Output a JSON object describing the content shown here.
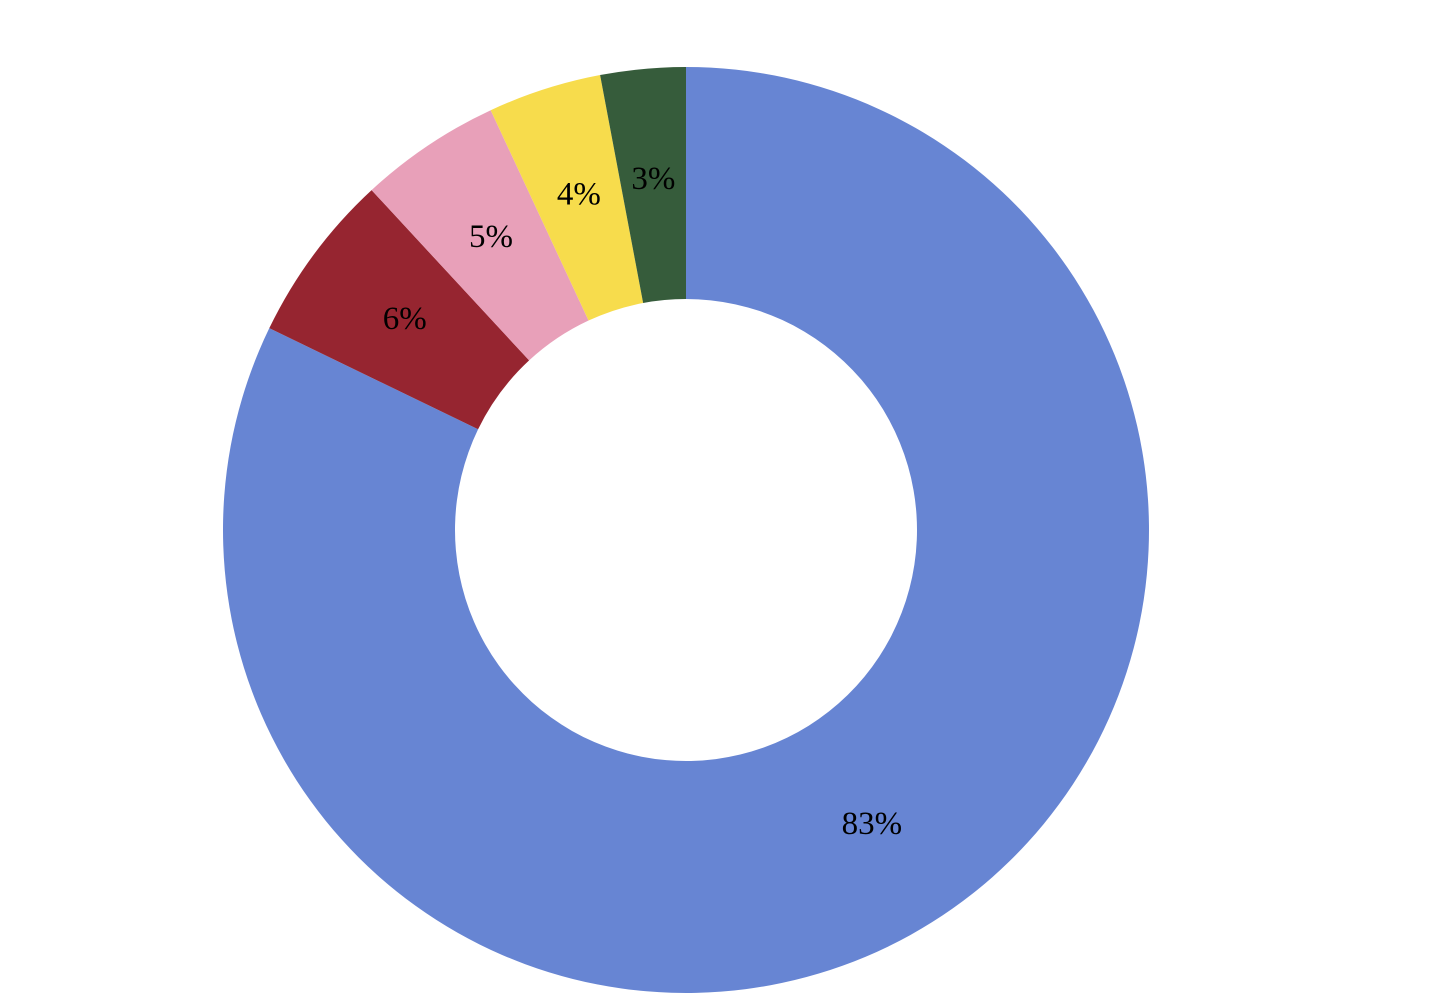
{
  "chart_data": {
    "type": "donut",
    "values": [
      83,
      6,
      5,
      4,
      3
    ],
    "value_labels": [
      "83%",
      "6%",
      "5%",
      "4%",
      "3%"
    ],
    "colors": [
      "#6785d3",
      "#962530",
      "#e8a0b9",
      "#f7dc4c",
      "#365c3b"
    ]
  }
}
